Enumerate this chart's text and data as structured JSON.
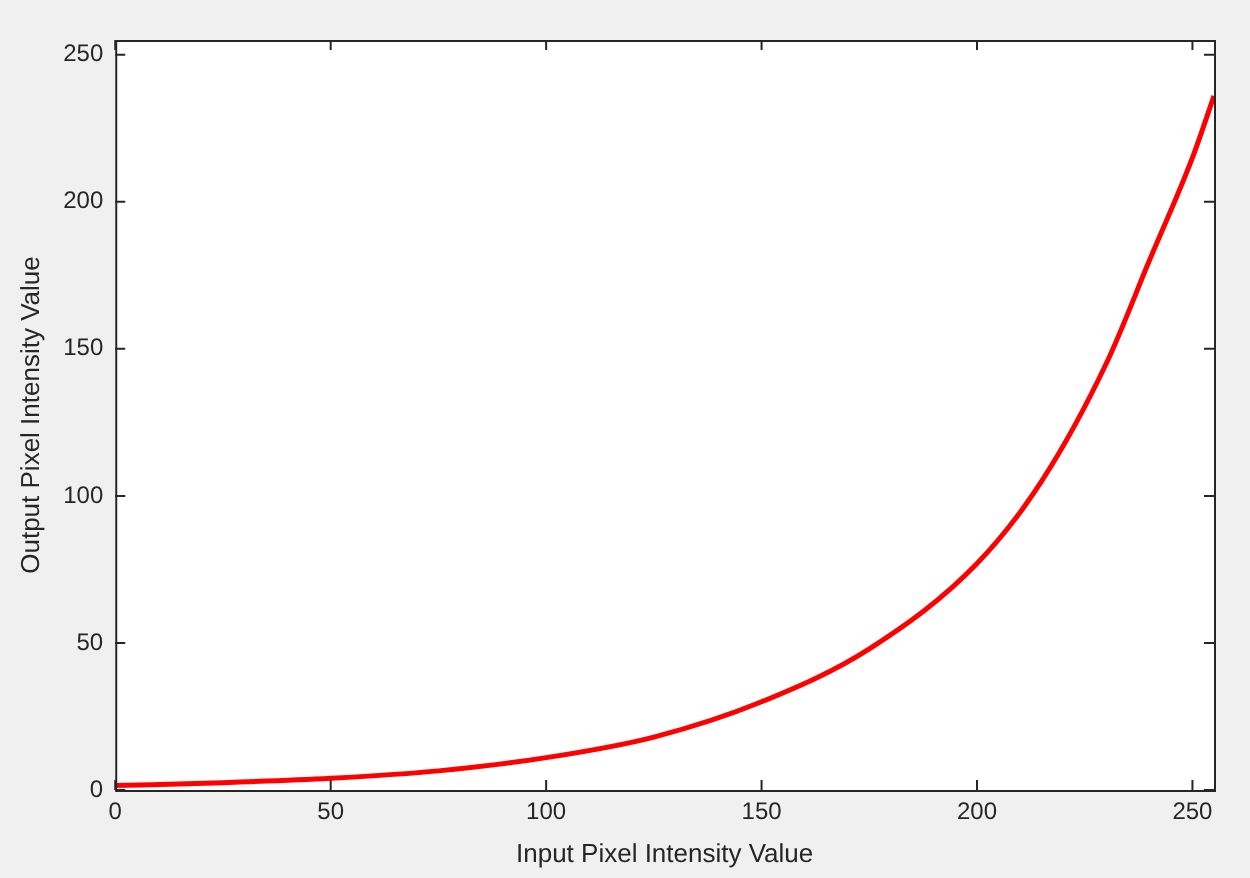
{
  "chart_data": {
    "type": "line",
    "xlabel": "Input Pixel Intensity Value",
    "ylabel": "Output Pixel Intensity Value",
    "series": [
      {
        "color": "#ff0000",
        "x": [
          0,
          25,
          50,
          75,
          100,
          125,
          150,
          175,
          200,
          215,
          230,
          240,
          250,
          255
        ],
        "values": [
          1.5,
          2.5,
          4,
          6.5,
          11,
          18,
          30,
          48,
          77,
          105,
          145,
          180,
          215,
          236
        ]
      }
    ],
    "xlim": [
      0,
      255
    ],
    "xticks": [
      0,
      50,
      100,
      150,
      200,
      250
    ],
    "ylim": [
      0,
      255
    ],
    "yticks": [
      0,
      50,
      100,
      150,
      200,
      250
    ],
    "grid": false,
    "legend": false,
    "marker": "none",
    "line_style": "solid"
  }
}
